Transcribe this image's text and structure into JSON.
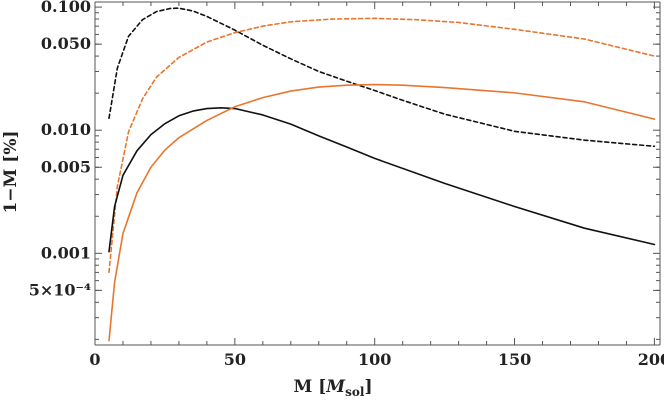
{
  "chart_data": {
    "type": "line",
    "title": "",
    "xlabel": "M [M_sol]",
    "xlabel_parts": {
      "main": "M [",
      "italic": "M",
      "sub": "sol",
      "close": "]"
    },
    "ylabel": "1−M [%]",
    "x_scale": "linear",
    "y_scale": "log",
    "xlim": [
      0,
      202
    ],
    "ylim": [
      0.00018,
      0.11
    ],
    "x_ticks": [
      {
        "value": 0,
        "label": "0"
      },
      {
        "value": 50,
        "label": "50"
      },
      {
        "value": 100,
        "label": "100"
      },
      {
        "value": 150,
        "label": "150"
      },
      {
        "value": 200,
        "label": "200"
      }
    ],
    "y_ticks": [
      {
        "value": 0.1,
        "label": "0.100"
      },
      {
        "value": 0.05,
        "label": "0.050"
      },
      {
        "value": 0.01,
        "label": "0.010"
      },
      {
        "value": 0.005,
        "label": "0.005"
      },
      {
        "value": 0.001,
        "label": "0.001"
      },
      {
        "value": 0.0005,
        "label": "5×10⁻⁴"
      }
    ],
    "grid": false,
    "legend": "none",
    "colors": {
      "black": "#111111",
      "orange": "#e8762e"
    },
    "series": [
      {
        "color": "#111111",
        "dash": "dashed",
        "points": [
          [
            5,
            0.0125
          ],
          [
            8,
            0.032
          ],
          [
            12,
            0.058
          ],
          [
            17,
            0.079
          ],
          [
            22,
            0.092
          ],
          [
            27,
            0.0975
          ],
          [
            30,
            0.098
          ],
          [
            35,
            0.093
          ],
          [
            40,
            0.084
          ],
          [
            50,
            0.065
          ],
          [
            60,
            0.049
          ],
          [
            70,
            0.038
          ],
          [
            80,
            0.03
          ],
          [
            90,
            0.025
          ],
          [
            100,
            0.021
          ],
          [
            110,
            0.0175
          ],
          [
            125,
            0.0135
          ],
          [
            150,
            0.0098
          ],
          [
            175,
            0.0083
          ],
          [
            200,
            0.0074
          ]
        ]
      },
      {
        "color": "#e8762e",
        "dash": "dashed",
        "points": [
          [
            5,
            0.0007
          ],
          [
            8,
            0.0035
          ],
          [
            12,
            0.0097
          ],
          [
            17,
            0.018
          ],
          [
            22,
            0.027
          ],
          [
            30,
            0.039
          ],
          [
            40,
            0.052
          ],
          [
            50,
            0.062
          ],
          [
            60,
            0.07
          ],
          [
            70,
            0.076
          ],
          [
            85,
            0.08
          ],
          [
            100,
            0.081
          ],
          [
            115,
            0.079
          ],
          [
            130,
            0.075
          ],
          [
            150,
            0.066
          ],
          [
            175,
            0.055
          ],
          [
            200,
            0.04
          ]
        ]
      },
      {
        "color": "#111111",
        "dash": "solid",
        "points": [
          [
            5,
            0.00103
          ],
          [
            7,
            0.0024
          ],
          [
            10,
            0.0043
          ],
          [
            15,
            0.0068
          ],
          [
            20,
            0.0092
          ],
          [
            25,
            0.0113
          ],
          [
            30,
            0.0131
          ],
          [
            35,
            0.0143
          ],
          [
            40,
            0.015
          ],
          [
            45,
            0.0152
          ],
          [
            50,
            0.015
          ],
          [
            60,
            0.0133
          ],
          [
            70,
            0.0112
          ],
          [
            80,
            0.009
          ],
          [
            90,
            0.0073
          ],
          [
            100,
            0.0059
          ],
          [
            125,
            0.0037
          ],
          [
            150,
            0.0024
          ],
          [
            175,
            0.0016
          ],
          [
            200,
            0.00118
          ]
        ]
      },
      {
        "color": "#e8762e",
        "dash": "solid",
        "points": [
          [
            5,
            0.000195
          ],
          [
            7,
            0.00058
          ],
          [
            10,
            0.00145
          ],
          [
            15,
            0.0031
          ],
          [
            20,
            0.005
          ],
          [
            25,
            0.0069
          ],
          [
            30,
            0.0087
          ],
          [
            40,
            0.012
          ],
          [
            50,
            0.0155
          ],
          [
            60,
            0.0184
          ],
          [
            70,
            0.0208
          ],
          [
            80,
            0.0224
          ],
          [
            90,
            0.0232
          ],
          [
            100,
            0.0235
          ],
          [
            110,
            0.0232
          ],
          [
            125,
            0.0222
          ],
          [
            150,
            0.0201
          ],
          [
            175,
            0.017
          ],
          [
            200,
            0.0123
          ]
        ]
      }
    ]
  }
}
